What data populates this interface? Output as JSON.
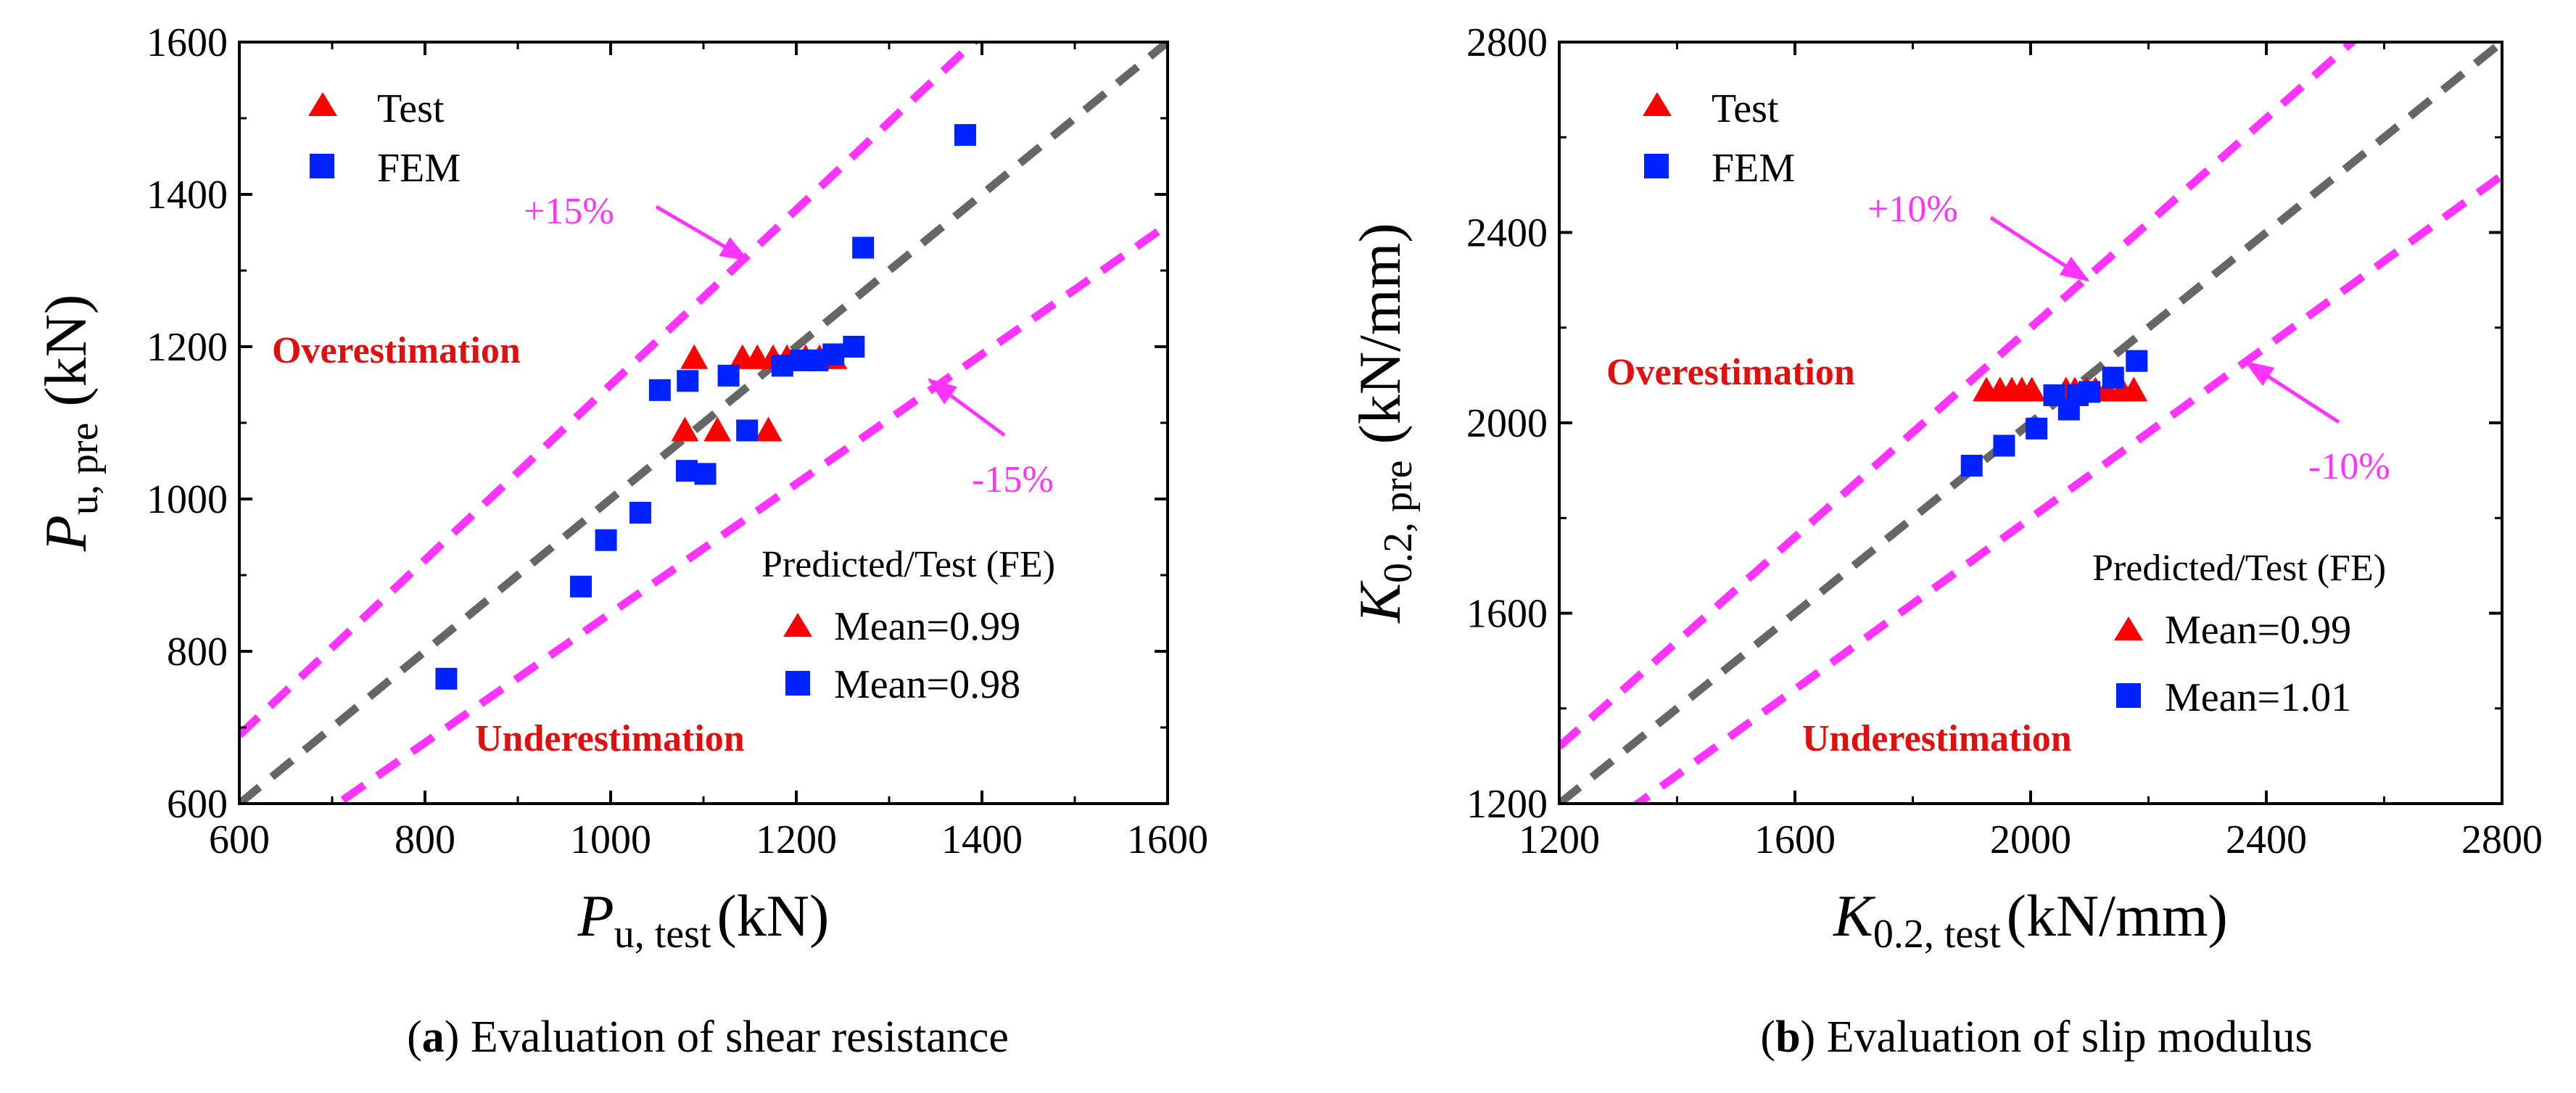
{
  "colors": {
    "test": "#ff0000",
    "fem": "#0022ff",
    "band": "#ff33ff",
    "ideal": "#666666",
    "region": "#e01010"
  },
  "chart_data": [
    {
      "type": "scatter",
      "id": "a",
      "caption_label": "a",
      "caption_text": "Evaluation of shear resistance",
      "xlabel": {
        "main": "P",
        "sub": "u, test",
        "unit": "(kN)"
      },
      "ylabel": {
        "main": "P",
        "sub": "u, pre",
        "unit": "(kN)"
      },
      "xlim": [
        600,
        1600
      ],
      "ylim": [
        600,
        1600
      ],
      "xticks": [
        600,
        800,
        1000,
        1200,
        1400,
        1600
      ],
      "yticks": [
        600,
        800,
        1000,
        1200,
        1400,
        1600
      ],
      "band_pct": 0.15,
      "band_upper_label": "+15%",
      "band_lower_label": "-15%",
      "over_label": "Overestimation",
      "under_label": "Underestimation",
      "stats_title": "Predicted/Test (FE)",
      "legend": [
        {
          "name": "Test",
          "marker": "triangle"
        },
        {
          "name": "FEM",
          "marker": "square"
        }
      ],
      "stats": [
        {
          "marker": "triangle",
          "text": "Mean=0.99"
        },
        {
          "marker": "square",
          "text": "Mean=0.98"
        }
      ],
      "series": [
        {
          "name": "Test",
          "marker": "triangle",
          "points": [
            [
              1080,
              1090
            ],
            [
              1090,
              1185
            ],
            [
              1115,
              1090
            ],
            [
              1142,
              1185
            ],
            [
              1158,
              1185
            ],
            [
              1170,
              1090
            ],
            [
              1175,
              1185
            ],
            [
              1190,
              1185
            ],
            [
              1210,
              1185
            ],
            [
              1225,
              1185
            ],
            [
              1240,
              1185
            ]
          ]
        },
        {
          "name": "FEM",
          "marker": "square",
          "points": [
            [
              823,
              764
            ],
            [
              968,
              885
            ],
            [
              995,
              946
            ],
            [
              1032,
              982
            ],
            [
              1053,
              1143
            ],
            [
              1082,
              1037
            ],
            [
              1083,
              1155
            ],
            [
              1102,
              1033
            ],
            [
              1127,
              1162
            ],
            [
              1147,
              1090
            ],
            [
              1185,
              1175
            ],
            [
              1205,
              1182
            ],
            [
              1223,
              1182
            ],
            [
              1240,
              1190
            ],
            [
              1262,
              1200
            ],
            [
              1272,
              1330
            ],
            [
              1382,
              1478
            ]
          ]
        }
      ]
    },
    {
      "type": "scatter",
      "id": "b",
      "caption_label": "b",
      "caption_text": "Evaluation of slip modulus",
      "xlabel": {
        "main": "K",
        "sub": "0.2, test",
        "unit": "(kN/mm)"
      },
      "ylabel": {
        "main": "K",
        "sub": "0.2, pre",
        "unit": "(kN/mm)"
      },
      "xlim": [
        1200,
        2800
      ],
      "ylim": [
        1200,
        2800
      ],
      "xticks": [
        1200,
        1600,
        2000,
        2400,
        2800
      ],
      "yticks": [
        1200,
        1600,
        2000,
        2400,
        2800
      ],
      "band_pct": 0.1,
      "band_upper_label": "+10%",
      "band_lower_label": "-10%",
      "over_label": "Overestimation",
      "under_label": "Underestimation",
      "stats_title": "Predicted/Test (FE)",
      "legend": [
        {
          "name": "Test",
          "marker": "triangle"
        },
        {
          "name": "FEM",
          "marker": "square"
        }
      ],
      "stats": [
        {
          "marker": "triangle",
          "text": "Mean=0.99"
        },
        {
          "marker": "square",
          "text": "Mean=1.01"
        }
      ],
      "series": [
        {
          "name": "Test",
          "marker": "triangle",
          "points": [
            [
              1925,
              2068
            ],
            [
              1948,
              2068
            ],
            [
              1968,
              2068
            ],
            [
              1985,
              2068
            ],
            [
              2002,
              2068
            ],
            [
              2060,
              2068
            ],
            [
              2075,
              2068
            ],
            [
              2095,
              2068
            ],
            [
              2110,
              2068
            ],
            [
              2130,
              2068
            ],
            [
              2155,
              2068
            ],
            [
              2175,
              2068
            ]
          ]
        },
        {
          "name": "FEM",
          "marker": "square",
          "points": [
            [
              1900,
              1910
            ],
            [
              1955,
              1952
            ],
            [
              2010,
              1988
            ],
            [
              2040,
              2058
            ],
            [
              2065,
              2028
            ],
            [
              2080,
              2058
            ],
            [
              2100,
              2065
            ],
            [
              2140,
              2095
            ],
            [
              2180,
              2130
            ]
          ]
        }
      ]
    }
  ]
}
